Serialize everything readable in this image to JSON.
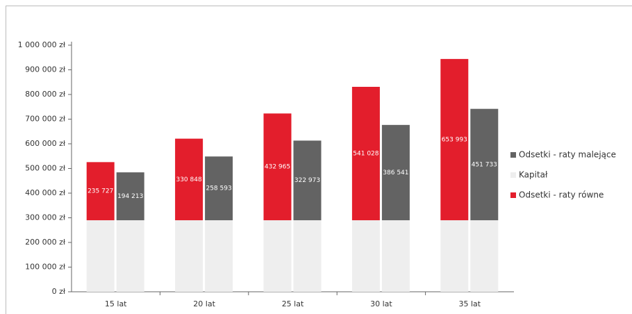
{
  "chart_data": {
    "type": "bar",
    "categories": [
      "15 lat",
      "20 lat",
      "25 lat",
      "30 lat",
      "35 lat"
    ],
    "series": [
      {
        "name": "Odsetki - raty malejące",
        "color": "#636363",
        "group": 1,
        "values": [
          194213,
          258593,
          322973,
          386541,
          451733
        ],
        "value_labels": [
          "194 213",
          "258 593",
          "322 973",
          "386 541",
          "451 733"
        ]
      },
      {
        "name": "Kapitał",
        "color": "#eeeeee",
        "values": [
          290000,
          290000,
          290000,
          290000,
          290000
        ]
      },
      {
        "name": "Odsetki - raty równe",
        "color": "#e31e2c",
        "group": 0,
        "values": [
          235727,
          330848,
          432965,
          541028,
          653993
        ],
        "value_labels": [
          "235 727",
          "330 848",
          "432 965",
          "541 028",
          "653 993"
        ]
      }
    ],
    "ylim": [
      0,
      1000000
    ],
    "yticks": [
      {
        "value": 0,
        "label": "0 zł"
      },
      {
        "value": 100000,
        "label": "100 000 zł"
      },
      {
        "value": 200000,
        "label": "200 000 zł"
      },
      {
        "value": 300000,
        "label": "300 000 zł"
      },
      {
        "value": 400000,
        "label": "400 000 zł"
      },
      {
        "value": 500000,
        "label": "500 000 zł"
      },
      {
        "value": 600000,
        "label": "600 000 zł"
      },
      {
        "value": 700000,
        "label": "700 000 zł"
      },
      {
        "value": 800000,
        "label": "800 000 zł"
      },
      {
        "value": 900000,
        "label": "900 000 zł"
      },
      {
        "value": 1000000,
        "label": "1 000 000 zł"
      }
    ],
    "legend": "right"
  }
}
